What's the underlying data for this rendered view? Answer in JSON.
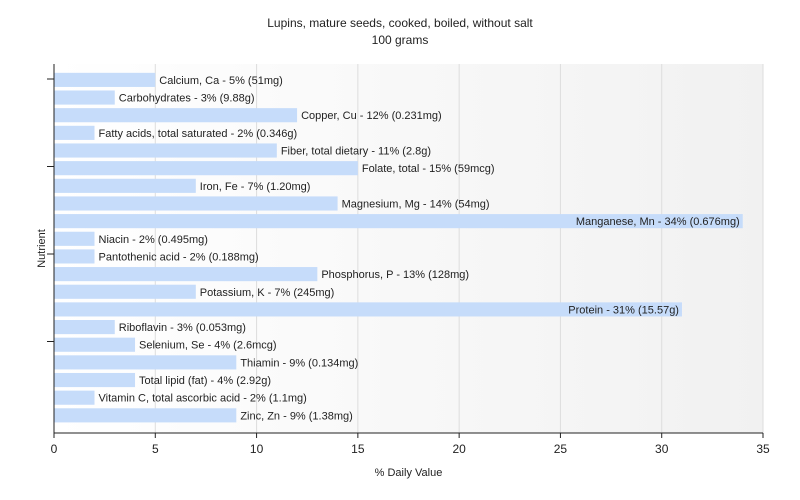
{
  "chart_data": {
    "type": "bar",
    "orientation": "horizontal",
    "title": "Lupins, mature seeds, cooked, boiled, without salt",
    "subtitle": "100 grams",
    "xlabel": "% Daily Value",
    "ylabel": "Nutrient",
    "xlim": [
      0,
      35
    ],
    "xticks": [
      0,
      5,
      10,
      15,
      20,
      25,
      30,
      35
    ],
    "grid": true,
    "bar_color": "#c6dcfa",
    "categories": [
      "Calcium, Ca",
      "Carbohydrates",
      "Copper, Cu",
      "Fatty acids, total saturated",
      "Fiber, total dietary",
      "Folate, total",
      "Iron, Fe",
      "Magnesium, Mg",
      "Manganese, Mn",
      "Niacin",
      "Pantothenic acid",
      "Phosphorus, P",
      "Potassium, K",
      "Protein",
      "Riboflavin",
      "Selenium, Se",
      "Thiamin",
      "Total lipid (fat)",
      "Vitamin C, total ascorbic acid",
      "Zinc, Zn"
    ],
    "values": [
      5,
      3,
      12,
      2,
      11,
      15,
      7,
      14,
      34,
      2,
      2,
      13,
      7,
      31,
      3,
      4,
      9,
      4,
      2,
      9
    ],
    "labels": [
      "Calcium, Ca - 5% (51mg)",
      "Carbohydrates - 3% (9.88g)",
      "Copper, Cu - 12% (0.231mg)",
      "Fatty acids, total saturated - 2% (0.346g)",
      "Fiber, total dietary - 11% (2.8g)",
      "Folate, total - 15% (59mcg)",
      "Iron, Fe - 7% (1.20mg)",
      "Magnesium, Mg - 14% (54mg)",
      "Manganese, Mn - 34% (0.676mg)",
      "Niacin - 2% (0.495mg)",
      "Pantothenic acid - 2% (0.188mg)",
      "Phosphorus, P - 13% (128mg)",
      "Potassium, K - 7% (245mg)",
      "Protein - 31% (15.57g)",
      "Riboflavin - 3% (0.053mg)",
      "Selenium, Se - 4% (2.6mcg)",
      "Thiamin - 9% (0.134mg)",
      "Total lipid (fat) - 4% (2.92g)",
      "Vitamin C, total ascorbic acid - 2% (1.1mg)",
      "Zinc, Zn - 9% (1.38mg)"
    ],
    "label_inside": [
      false,
      false,
      false,
      false,
      false,
      false,
      false,
      false,
      true,
      false,
      false,
      false,
      false,
      true,
      false,
      false,
      false,
      false,
      false,
      false
    ]
  }
}
